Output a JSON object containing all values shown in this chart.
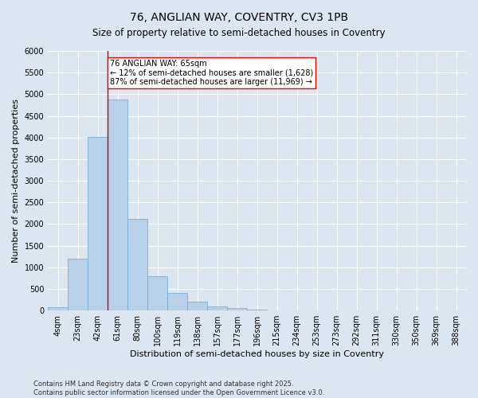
{
  "title1": "76, ANGLIAN WAY, COVENTRY, CV3 1PB",
  "title2": "Size of property relative to semi-detached houses in Coventry",
  "xlabel": "Distribution of semi-detached houses by size in Coventry",
  "ylabel": "Number of semi-detached properties",
  "categories": [
    "4sqm",
    "23sqm",
    "42sqm",
    "61sqm",
    "80sqm",
    "100sqm",
    "119sqm",
    "138sqm",
    "157sqm",
    "177sqm",
    "196sqm",
    "215sqm",
    "234sqm",
    "253sqm",
    "273sqm",
    "292sqm",
    "311sqm",
    "330sqm",
    "350sqm",
    "369sqm",
    "388sqm"
  ],
  "values": [
    70,
    1200,
    4020,
    4870,
    2110,
    800,
    400,
    200,
    100,
    60,
    30,
    10,
    5,
    2,
    1,
    0,
    0,
    0,
    0,
    0,
    0
  ],
  "bar_color": "#b8d0e8",
  "bar_edge_color": "#6aaad4",
  "subject_bin": 3,
  "subject_label": "76 ANGLIAN WAY: 65sqm",
  "pct_smaller": 12,
  "pct_larger": 87,
  "n_smaller": "1,628",
  "n_larger": "11,969",
  "ylim": [
    0,
    6000
  ],
  "yticks": [
    0,
    500,
    1000,
    1500,
    2000,
    2500,
    3000,
    3500,
    4000,
    4500,
    5000,
    5500,
    6000
  ],
  "vline_color": "#cc0000",
  "background_color": "#dce6f0",
  "footer": "Contains HM Land Registry data © Crown copyright and database right 2025.\nContains public sector information licensed under the Open Government Licence v3.0.",
  "title_fontsize": 10,
  "subtitle_fontsize": 8.5,
  "axis_label_fontsize": 8,
  "tick_fontsize": 7,
  "footer_fontsize": 6,
  "annotation_fontsize": 7
}
